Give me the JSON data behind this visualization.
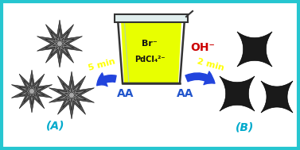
{
  "background_color": "#ffffff",
  "border_color": "#26c6d0",
  "border_lw": 3,
  "figsize": [
    3.77,
    1.89
  ],
  "dpi": 100,
  "beaker_fill": "#e8ff00",
  "beaker_glass_top": "#d8eeee",
  "beaker_outline": "#333333",
  "arrow_color": "#2244dd",
  "time_color": "#ffff00",
  "aa_color": "#2255cc",
  "oh_color": "#cc0000",
  "label_color": "#00aacc",
  "star_dark": "#444444",
  "star_mid": "#888888",
  "concave_color": "#222222",
  "beaker_text1": "Br⁻",
  "beaker_text2": "PdCl₄²⁻",
  "left_time": "5 min",
  "right_time": "2 min",
  "aa_text": "AA",
  "oh_text": "OH⁻",
  "label_a": "(A)",
  "label_b": "(B)"
}
